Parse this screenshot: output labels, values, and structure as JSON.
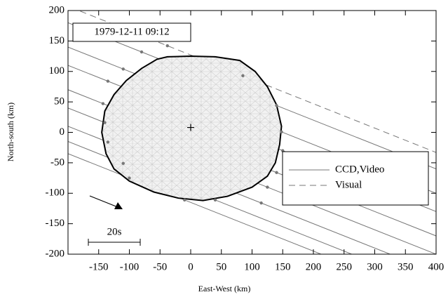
{
  "chart_data": {
    "type": "occultation",
    "label": "1979-12-11   09:12",
    "xlabel": "East-West (km)",
    "ylabel": "North-south (km)",
    "scale_label": "20s",
    "xlim": [
      -200,
      400
    ],
    "ylim": [
      -200,
      200
    ],
    "xticks": [
      -150,
      -100,
      -50,
      0,
      50,
      100,
      150,
      200,
      250,
      300,
      350,
      400
    ],
    "yticks": [
      -200,
      -150,
      -100,
      -50,
      0,
      50,
      100,
      150,
      200
    ],
    "center": {
      "x": 0,
      "y": 8
    },
    "outline": {
      "x": [
        -38,
        0,
        40,
        80,
        105,
        125,
        140,
        148,
        145,
        138,
        125,
        100,
        60,
        20,
        -20,
        -60,
        -100,
        -125,
        -138,
        -145,
        -140,
        -125,
        -105,
        -80,
        -55
      ],
      "y": [
        124,
        125,
        124,
        118,
        100,
        75,
        45,
        10,
        -20,
        -50,
        -72,
        -90,
        -105,
        -112,
        -108,
        -98,
        -80,
        -60,
        -35,
        0,
        35,
        62,
        85,
        105,
        120
      ]
    },
    "series": [
      {
        "name": "CCD,Video",
        "color": "#777777",
        "dash": false,
        "chords": [
          {
            "x": [
              -200,
              -80,
              140,
              400
            ],
            "y": [
              180,
              132,
              44,
              -60
            ]
          },
          {
            "x": [
              -200,
              -110,
              148,
              400
            ],
            "y": [
              140,
              104,
              0.8,
              -100
            ]
          },
          {
            "x": [
              -200,
              -135,
              150,
              400
            ],
            "y": [
              110,
              84,
              -30,
              -130
            ]
          },
          {
            "x": [
              -200,
              -143,
              140,
              400
            ],
            "y": [
              70,
              47.2,
              -66,
              -170
            ]
          },
          {
            "x": [
              -200,
              -140,
              125,
              400
            ],
            "y": [
              40,
              16,
              -90,
              -200
            ]
          },
          {
            "x": [
              -200,
              -135,
              115,
              325
            ],
            "y": [
              10,
              -16,
              -116,
              -200
            ]
          },
          {
            "x": [
              -200,
              -110,
              40,
              262.5
            ],
            "y": [
              -15,
              -51,
              -111,
              -200
            ]
          },
          {
            "x": [
              -200,
              -100,
              -10,
              212.5
            ],
            "y": [
              -35,
              -75,
              -111,
              -200
            ]
          }
        ]
      },
      {
        "name": "Visual",
        "color": "#777777",
        "dash": true,
        "chords": [
          {
            "x": [
              -180,
              -38,
              85,
              400
            ],
            "y": [
              199,
              142.2,
              93,
              -33
            ]
          }
        ]
      }
    ]
  }
}
